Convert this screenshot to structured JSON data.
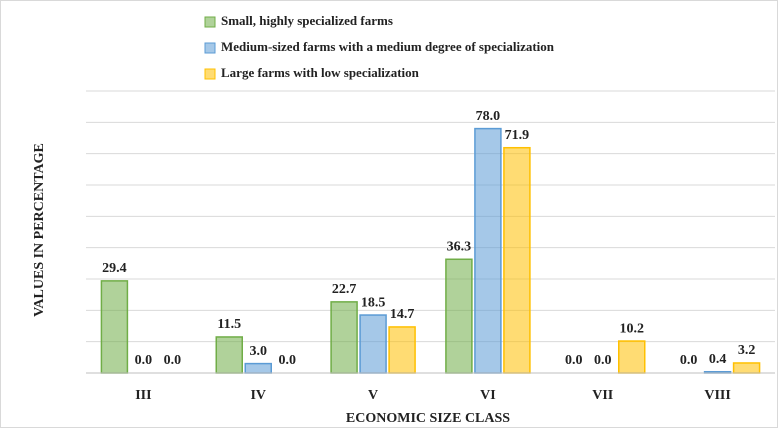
{
  "chart_data": {
    "type": "bar",
    "x_label": "ECONOMIC SIZE CLASS",
    "y_label": "VALUES IN PERCENTAGE",
    "categories": [
      "III",
      "IV",
      "V",
      "VI",
      "VII",
      "VIII"
    ],
    "series": [
      {
        "name": "Small, highly specialized farms",
        "color": "#70ad47",
        "values": [
          29.4,
          11.5,
          22.7,
          36.3,
          0,
          0
        ],
        "value_labels": [
          "29.4",
          "11.5",
          "22.7",
          "36.3",
          "0.0",
          "0.0"
        ]
      },
      {
        "name": "Medium-sized farms with a medium degree of specialization",
        "color": "#5b9bd5",
        "values": [
          0,
          3,
          18.5,
          78,
          0,
          0.4
        ],
        "value_labels": [
          "0.0",
          "3.0",
          "18.5",
          "78.0",
          "0.0",
          "0.4"
        ]
      },
      {
        "name": "Large farms with low specialization",
        "color": "#ffc000",
        "values": [
          0,
          0,
          14.7,
          71.9,
          10.2,
          3.2
        ],
        "value_labels": [
          "0.0",
          "0.0",
          "14.7",
          "71.9",
          "10.2",
          "3.2"
        ]
      }
    ],
    "ylim": [
      0,
      90
    ],
    "yticks": [
      0,
      10,
      20,
      30,
      40,
      50,
      60,
      70,
      80,
      90
    ],
    "grid": true
  }
}
